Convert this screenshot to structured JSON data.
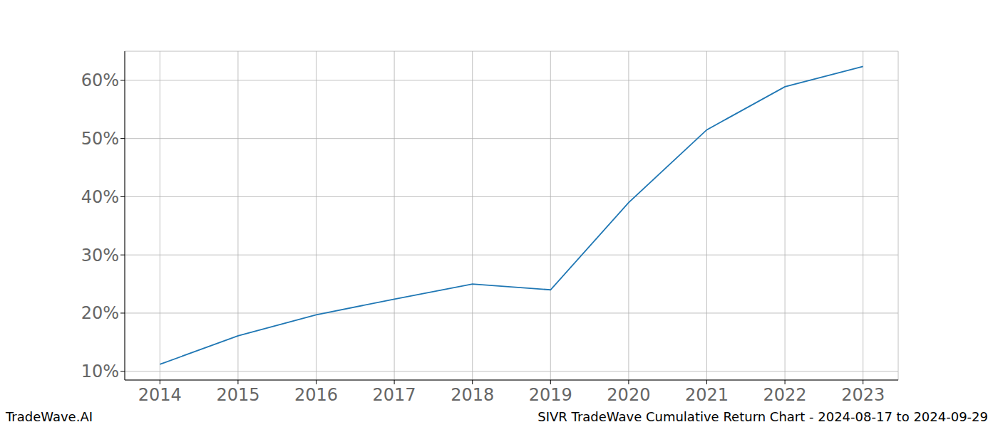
{
  "chart_data": {
    "type": "line",
    "title": "SIVR TradeWave Cumulative Return Chart - 2024-08-17 to 2024-09-29",
    "watermark": "TradeWave.AI",
    "x": [
      2014,
      2015,
      2016,
      2017,
      2018,
      2019,
      2020,
      2021,
      2022,
      2023
    ],
    "values": [
      11.2,
      16.1,
      19.7,
      22.4,
      25.0,
      24.0,
      39.0,
      51.5,
      58.9,
      62.4
    ],
    "color": "#1f77b4",
    "xlim": [
      2013.55,
      2023.45
    ],
    "xticks": [
      2014,
      2015,
      2016,
      2017,
      2018,
      2019,
      2020,
      2021,
      2022,
      2023
    ],
    "ylim": [
      8.5,
      65
    ],
    "yticks": [
      {
        "value": 10,
        "label": "10%"
      },
      {
        "value": 20,
        "label": "20%"
      },
      {
        "value": 30,
        "label": "30%"
      },
      {
        "value": 40,
        "label": "40%"
      },
      {
        "value": 50,
        "label": "50%"
      },
      {
        "value": 60,
        "label": "60%"
      }
    ],
    "grid": true
  }
}
